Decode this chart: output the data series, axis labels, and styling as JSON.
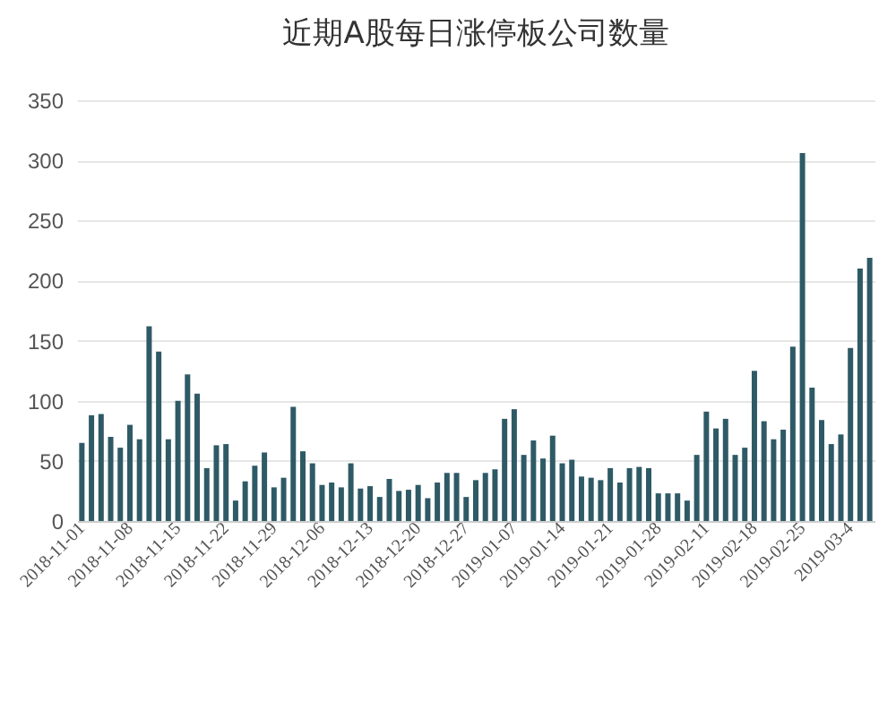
{
  "chart_data": {
    "type": "bar",
    "title": "近期A股每日涨停板公司数量",
    "categories": [
      "2018-11-01",
      null,
      null,
      null,
      null,
      "2018-11-08",
      null,
      null,
      null,
      null,
      "2018-11-15",
      null,
      null,
      null,
      null,
      "2018-11-22",
      null,
      null,
      null,
      null,
      "2018-11-29",
      null,
      null,
      null,
      null,
      "2018-12-06",
      null,
      null,
      null,
      null,
      "2018-12-13",
      null,
      null,
      null,
      null,
      "2018-12-20",
      null,
      null,
      null,
      null,
      "2018-12-27",
      null,
      null,
      null,
      null,
      "2019-01-07",
      null,
      null,
      null,
      null,
      "2019-01-14",
      null,
      null,
      null,
      null,
      "2019-01-21",
      null,
      null,
      null,
      null,
      "2019-01-28",
      null,
      null,
      null,
      null,
      "2019-02-11",
      null,
      null,
      null,
      null,
      "2019-02-18",
      null,
      null,
      null,
      null,
      "2019-02-25",
      null,
      null,
      null,
      null,
      "2019-03-4",
      null,
      null
    ],
    "values": [
      65,
      88,
      89,
      70,
      61,
      80,
      68,
      162,
      141,
      68,
      100,
      122,
      106,
      44,
      63,
      64,
      17,
      33,
      46,
      57,
      28,
      36,
      95,
      58,
      48,
      30,
      32,
      28,
      48,
      27,
      29,
      20,
      35,
      25,
      26,
      30,
      19,
      32,
      40,
      40,
      20,
      34,
      40,
      43,
      85,
      93,
      55,
      67,
      52,
      71,
      48,
      51,
      37,
      36,
      34,
      44,
      32,
      44,
      45,
      44,
      23,
      23,
      23,
      17,
      55,
      91,
      77,
      85,
      55,
      61,
      125,
      83,
      68,
      76,
      145,
      306,
      111,
      84,
      64,
      72,
      144,
      210,
      219
    ],
    "color": "#2e5a66",
    "ylim": [
      0,
      350
    ],
    "yticks": [
      0,
      50,
      100,
      150,
      200,
      250,
      300,
      350
    ],
    "grid": "y"
  }
}
